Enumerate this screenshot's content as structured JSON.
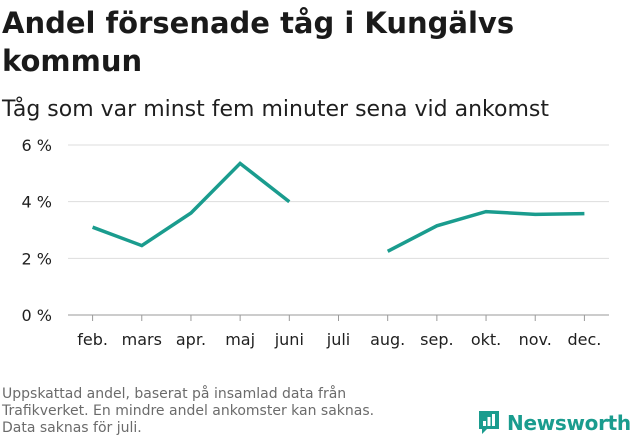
{
  "chart_data": {
    "type": "line",
    "title": "Andel försenade tåg i Kungälvs kommun",
    "subtitle": "Tåg som var minst fem minuter sena vid ankomst",
    "categories": [
      "feb.",
      "mars",
      "apr.",
      "maj",
      "juni",
      "juli",
      "aug.",
      "sep.",
      "okt.",
      "nov.",
      "dec."
    ],
    "series": [
      {
        "name": "Andel försenade tåg",
        "values": [
          3.1,
          2.45,
          3.6,
          5.35,
          4.0,
          null,
          2.25,
          3.15,
          3.65,
          3.55,
          3.58
        ],
        "color": "#1a9c8e"
      }
    ],
    "yticks": [
      0,
      2,
      4,
      6
    ],
    "ytick_labels": [
      "0 %",
      "2 %",
      "4 %",
      "6 %"
    ],
    "ylim": [
      0,
      6
    ],
    "grid": true,
    "xlabel": "",
    "ylabel": ""
  },
  "footnote": {
    "lines": [
      "Uppskattad andel, baserat på insamlad data från",
      "Trafikverket. En mindre andel ankomster kan saknas.",
      "Data saknas för juli."
    ]
  },
  "brand": {
    "name": "Newsworthy",
    "color": "#1a9c8e"
  }
}
